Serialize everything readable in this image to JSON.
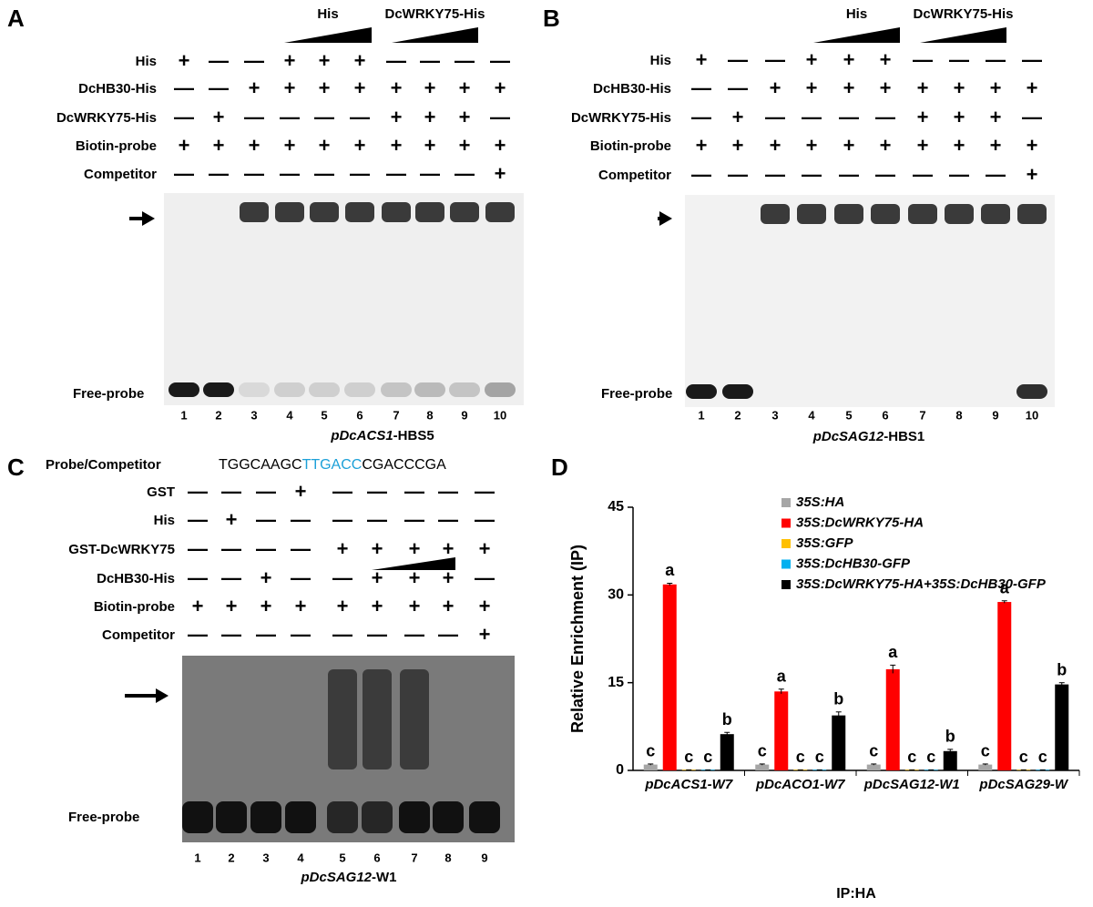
{
  "panels": [
    {
      "letter": "A",
      "wedges": [
        {
          "label": "His"
        },
        {
          "label": "DcWRKY75-His"
        }
      ],
      "rows": [
        {
          "label": "His",
          "lanes": [
            "+",
            "—",
            "—",
            "+",
            "+",
            "+",
            "—",
            "—",
            "—",
            "—"
          ]
        },
        {
          "label": "DcHB30-His",
          "lanes": [
            "—",
            "—",
            "+",
            "+",
            "+",
            "+",
            "+",
            "+",
            "+",
            "+"
          ]
        },
        {
          "label": "DcWRKY75-His",
          "lanes": [
            "—",
            "+",
            "—",
            "—",
            "—",
            "—",
            "+",
            "+",
            "+",
            "—"
          ]
        },
        {
          "label": "Biotin-probe",
          "lanes": [
            "+",
            "+",
            "+",
            "+",
            "+",
            "+",
            "+",
            "+",
            "+",
            "+"
          ]
        },
        {
          "label": "Competitor",
          "lanes": [
            "—",
            "—",
            "—",
            "—",
            "—",
            "—",
            "—",
            "—",
            "—",
            "+"
          ]
        }
      ],
      "free_probe": "Free-probe",
      "lanes": [
        "1",
        "2",
        "3",
        "4",
        "5",
        "6",
        "7",
        "8",
        "9",
        "10"
      ],
      "caption": {
        "italic": "pDcACS1",
        "text": "-HBS5"
      }
    },
    {
      "letter": "B",
      "wedges": [
        {
          "label": "His"
        },
        {
          "label": "DcWRKY75-His"
        }
      ],
      "rows": [
        {
          "label": "His",
          "lanes": [
            "+",
            "—",
            "—",
            "+",
            "+",
            "+",
            "—",
            "—",
            "—",
            "—"
          ]
        },
        {
          "label": "DcHB30-His",
          "lanes": [
            "—",
            "—",
            "+",
            "+",
            "+",
            "+",
            "+",
            "+",
            "+",
            "+"
          ]
        },
        {
          "label": "DcWRKY75-His",
          "lanes": [
            "—",
            "+",
            "—",
            "—",
            "—",
            "—",
            "+",
            "+",
            "+",
            "—"
          ]
        },
        {
          "label": "Biotin-probe",
          "lanes": [
            "+",
            "+",
            "+",
            "+",
            "+",
            "+",
            "+",
            "+",
            "+",
            "+"
          ]
        },
        {
          "label": "Competitor",
          "lanes": [
            "—",
            "—",
            "—",
            "—",
            "—",
            "—",
            "—",
            "—",
            "—",
            "+"
          ]
        }
      ],
      "free_probe": "Free-probe",
      "lanes": [
        "1",
        "2",
        "3",
        "4",
        "5",
        "6",
        "7",
        "8",
        "9",
        "10"
      ],
      "caption": {
        "italic": "pDcSAG12",
        "text": "-HBS1"
      }
    },
    {
      "letter": "C",
      "probe": {
        "label": "Probe/Competitor",
        "sequence": [
          "TGGCAAGC",
          "TTGACC",
          "CGACCCGA"
        ]
      },
      "rows": [
        {
          "label": "GST",
          "lanes": [
            "—",
            "—",
            "—",
            "+",
            "—",
            "—",
            "—",
            "—",
            "—"
          ]
        },
        {
          "label": "His",
          "lanes": [
            "—",
            "+",
            "—",
            "—",
            "—",
            "—",
            "—",
            "—",
            "—"
          ]
        },
        {
          "label": "GST-DcWRKY75",
          "lanes": [
            "—",
            "—",
            "—",
            "—",
            "+",
            "+",
            "+",
            "+",
            "+"
          ]
        },
        {
          "label": "DcHB30-His",
          "lanes": [
            "—",
            "—",
            "+",
            "—",
            "—",
            "+",
            "+",
            "+",
            "—"
          ]
        },
        {
          "label": "Biotin-probe",
          "lanes": [
            "+",
            "+",
            "+",
            "+",
            "+",
            "+",
            "+",
            "+",
            "+"
          ]
        },
        {
          "label": "Competitor",
          "lanes": [
            "—",
            "—",
            "—",
            "—",
            "—",
            "—",
            "—",
            "—",
            "+"
          ]
        }
      ],
      "free_probe": "Free-probe",
      "lanes": [
        "1",
        "2",
        "3",
        "4",
        "5",
        "6",
        "7",
        "8",
        "9"
      ],
      "caption": {
        "italic": "pDcSAG12",
        "text": "-W1"
      }
    }
  ],
  "chart_data": {
    "type": "bar",
    "panel_letter": "D",
    "categories": [
      "pDcACS1-W7",
      "pDcACO1-W7",
      "pDcSAG12-W1",
      "pDcSAG29-W"
    ],
    "series": [
      {
        "name": "35S:HA",
        "color": "#a6a6a6",
        "values": [
          1,
          1,
          1,
          1
        ],
        "errors": [
          0.1,
          0.1,
          0.1,
          0.1
        ],
        "letters": [
          "c",
          "c",
          "c",
          "c"
        ]
      },
      {
        "name": "35S:DcWRKY75-HA",
        "color": "#ff0000",
        "values": [
          31.8,
          13.5,
          17.3,
          28.8
        ],
        "errors": [
          0.2,
          0.4,
          0.7,
          0.2
        ],
        "letters": [
          "a",
          "a",
          "a",
          "a"
        ]
      },
      {
        "name": "35S:GFP",
        "color": "#ffc000",
        "values": [
          0.1,
          0.1,
          0.1,
          0.1
        ],
        "errors": [
          0,
          0,
          0,
          0
        ],
        "letters": [
          "c",
          "c",
          "c",
          "c"
        ]
      },
      {
        "name": "35S:DcHB30-GFP",
        "color": "#00b0f0",
        "values": [
          0.1,
          0.1,
          0.1,
          0.1
        ],
        "errors": [
          0,
          0,
          0,
          0
        ],
        "letters": [
          "c",
          "c",
          "c",
          "c"
        ]
      },
      {
        "name": "35S:DcWRKY75-HA+35S:DcHB30-GFP",
        "color": "#000000",
        "values": [
          6.2,
          9.4,
          3.3,
          14.7
        ],
        "errors": [
          0.3,
          0.6,
          0.3,
          0.3
        ],
        "letters": [
          "b",
          "b",
          "b",
          "b"
        ]
      }
    ],
    "ylabel": "Relative Enrichment (IP)",
    "xlabel": "IP:HA",
    "ylim": [
      0,
      45
    ],
    "yticks": [
      0,
      15,
      30,
      45
    ]
  }
}
